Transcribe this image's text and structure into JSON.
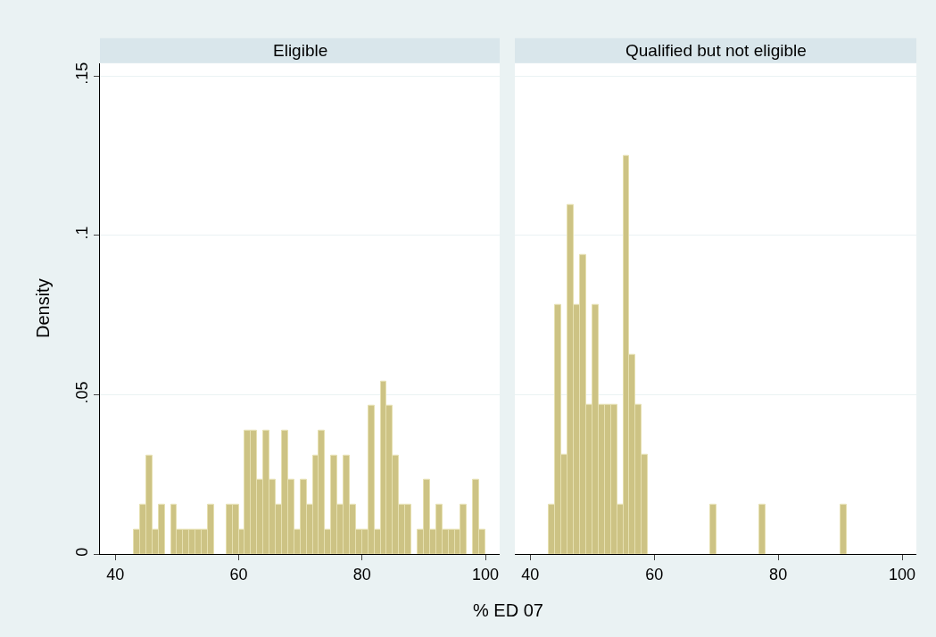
{
  "chart_data": [
    {
      "type": "histogram",
      "title": "Eligible",
      "xlabel": "% ED 07",
      "ylabel": "Density",
      "color": "#cdc384",
      "grid": "y",
      "bins": [
        43,
        44,
        45,
        46,
        47,
        48,
        49,
        50,
        51,
        52,
        53,
        54,
        55,
        56,
        57,
        58,
        59,
        60,
        61,
        62,
        63,
        64,
        65,
        66,
        67,
        68,
        69,
        70,
        71,
        72,
        73,
        74,
        75,
        76,
        77,
        78,
        79,
        80,
        81,
        82,
        83,
        84,
        85,
        86,
        87,
        88,
        89,
        90,
        91,
        92,
        93,
        94,
        95,
        96,
        97,
        98,
        99,
        100
      ],
      "values": [
        0.0078,
        0.0155,
        0.031,
        0.0078,
        0.0155,
        0,
        0.0155,
        0.0078,
        0.0078,
        0.0078,
        0.0078,
        0.0078,
        0.0155,
        0,
        0,
        0.0155,
        0.0155,
        0.0078,
        0.0388,
        0.0388,
        0.0233,
        0.0388,
        0.0233,
        0.0155,
        0.0388,
        0.0233,
        0.0078,
        0.0233,
        0.0155,
        0.031,
        0.0388,
        0.0078,
        0.031,
        0.0155,
        0.031,
        0.0155,
        0.0078,
        0.0078,
        0.0465,
        0.0078,
        0.0543,
        0.0465,
        0.031,
        0.0155,
        0.0155,
        0,
        0.0078,
        0.0233,
        0.0078,
        0.0155,
        0.0078,
        0.0078,
        0.0078,
        0.0155,
        0,
        0.0233,
        0.0078
      ],
      "xlim": [
        37.5,
        102.3
      ],
      "xticks": [
        40,
        60,
        80,
        100
      ],
      "ylim": [
        0,
        0.154
      ],
      "yticks": [
        0,
        {
          "value": 0.05,
          "label": ".05"
        },
        {
          "value": 0.1,
          "label": ".1"
        },
        {
          "value": 0.15,
          "label": ".15"
        }
      ]
    },
    {
      "type": "histogram",
      "title": "Qualified but not eligible",
      "color": "#cdc384",
      "grid": "y",
      "tick_labels": "x",
      "bins": [
        43,
        44,
        45,
        46,
        47,
        48,
        49,
        50,
        51,
        52,
        53,
        54,
        55,
        56,
        57,
        58,
        59,
        60,
        61,
        62,
        63,
        64,
        65,
        66,
        67,
        68,
        69,
        70,
        71,
        72,
        73,
        74,
        75,
        76,
        77,
        78,
        79,
        80,
        81,
        82,
        83,
        84,
        85,
        86,
        87,
        88,
        89,
        90,
        91
      ],
      "yticks": [
        0,
        0.05,
        0.1,
        0.15
      ],
      "values": [
        0.0156,
        0.0781,
        0.0313,
        0.1094,
        0.0781,
        0.0938,
        0.0469,
        0.0781,
        0.0469,
        0.0469,
        0.0469,
        0.0156,
        0.125,
        0.0625,
        0.0469,
        0.0313,
        0,
        0,
        0,
        0,
        0,
        0,
        0,
        0,
        0,
        0,
        0.0156,
        0,
        0,
        0,
        0,
        0,
        0,
        0,
        0.0156,
        0,
        0,
        0,
        0,
        0,
        0,
        0,
        0,
        0,
        0,
        0,
        0,
        0.0156
      ],
      "xlim": [
        37.5,
        102.3
      ],
      "xticks": [
        40,
        60,
        80,
        100
      ],
      "ylim": [
        0,
        0.154
      ]
    }
  ]
}
